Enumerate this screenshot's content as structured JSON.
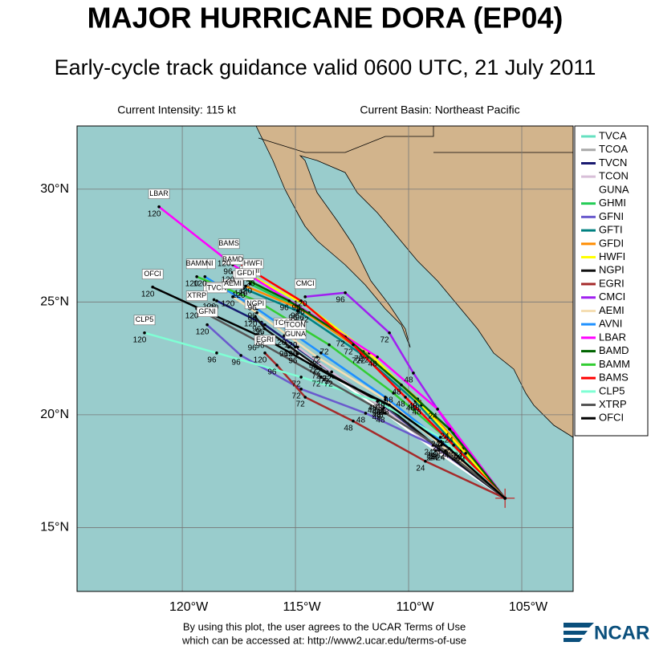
{
  "title": "MAJOR HURRICANE DORA (EP04)",
  "subtitle": "Early-cycle track guidance valid 0600 UTC, 21 July 2011",
  "intensity": "Current Intensity: 115 kt",
  "basin": "Current Basin: Northeast Pacific",
  "footer": [
    "By using this plot, the user agrees to the UCAR Terms of Use",
    "which can be accessed at: http://www2.ucar.edu/terms-of-use"
  ],
  "logo": "NCAR",
  "map": {
    "lonlim": [
      -124.65,
      -102.73
    ],
    "latlim": [
      12.17,
      32.8
    ],
    "lon_ticks": [
      {
        "value": -120,
        "label": "120°W"
      },
      {
        "value": -115,
        "label": "115°W"
      },
      {
        "value": -110,
        "label": "110°W"
      },
      {
        "value": -105,
        "label": "105°W"
      }
    ],
    "lat_ticks": [
      {
        "value": 15,
        "label": "15°N"
      },
      {
        "value": 20,
        "label": "20°N"
      },
      {
        "value": 25,
        "label": "25°N"
      },
      {
        "value": 30,
        "label": "30°N"
      }
    ],
    "start": {
      "lon": -105.74,
      "lat": 16.3
    },
    "hours": [
      24,
      48,
      72,
      96,
      120
    ],
    "models": [
      {
        "name": "TVCA",
        "color": "#66e0c0",
        "lon": [
          -108.8,
          -111.4,
          -114.0,
          -116.5,
          -118.6
        ],
        "lat": [
          18.5,
          20.5,
          22.3,
          24.1,
          25.1
        ]
      },
      {
        "name": "TCOA",
        "color": "#a9a9a9",
        "lon": [
          -108.7,
          -111.2,
          -113.6,
          -115.3,
          -115.5
        ],
        "lat": [
          18.4,
          20.3,
          21.9,
          23.0,
          23.5
        ]
      },
      {
        "name": "TVCN",
        "color": "#191970",
        "lon": [
          -108.72,
          -111.21,
          -113.87,
          -116.35,
          -118.48
        ],
        "lat": [
          18.47,
          20.43,
          22.21,
          23.99,
          25.05
        ]
      },
      {
        "name": "TCON",
        "color": "#d8bfd8",
        "lon": [
          -108.7,
          -111.1,
          -113.4,
          -114.9,
          -115.0
        ],
        "lat": [
          18.4,
          20.3,
          21.9,
          23.0,
          23.4
        ]
      },
      {
        "name": "GUNA",
        "color": "#ffffff",
        "lon": [
          -108.8,
          -111.2,
          -113.5,
          -114.9,
          -115.0
        ],
        "lat": [
          18.4,
          20.2,
          21.8,
          22.7,
          23.0
        ]
      },
      {
        "name": "GHMI",
        "color": "#22cc55",
        "lon": [
          -107.6,
          -109.5,
          -111.9,
          -114.6,
          -117.0
        ],
        "lat": [
          18.4,
          20.6,
          22.7,
          24.6,
          25.8
        ]
      },
      {
        "name": "GFNI",
        "color": "#6a5acd",
        "lon": [
          -108.9,
          -111.9,
          -114.75,
          -117.41,
          -118.9
        ],
        "lat": [
          18.65,
          20.07,
          21.14,
          22.63,
          23.99
        ]
      },
      {
        "name": "GFTI",
        "color": "#008080",
        "lon": [
          -107.7,
          -109.7,
          -112.1,
          -114.9,
          -117.3
        ],
        "lat": [
          18.4,
          20.6,
          22.7,
          24.6,
          25.6
        ]
      },
      {
        "name": "GFDI",
        "color": "#ff8c00",
        "lon": [
          -107.6,
          -109.6,
          -112.0,
          -114.8,
          -117.2
        ],
        "lat": [
          18.5,
          20.7,
          22.8,
          24.7,
          25.7
        ]
      },
      {
        "name": "HWFI",
        "color": "#ffff00",
        "lon": [
          -107.48,
          -109.43,
          -111.74,
          -114.57,
          -116.88
        ],
        "lat": [
          18.29,
          20.43,
          22.74,
          24.88,
          26.12
        ]
      },
      {
        "name": "NGPI",
        "color": "#111111",
        "lon": [
          -108.62,
          -111.03,
          -113.87,
          -116.35,
          -116.77
        ],
        "lat": [
          18.47,
          20.43,
          22.03,
          23.81,
          24.34
        ]
      },
      {
        "name": "EGRI",
        "color": "#a52a2a",
        "lon": [
          -109.26,
          -112.45,
          -114.57,
          -115.82,
          -116.35
        ],
        "lat": [
          17.94,
          19.72,
          20.78,
          22.2,
          22.74
        ]
      },
      {
        "name": "CMCI",
        "color": "#a020f0",
        "lon": [
          -108.01,
          -109.79,
          -110.85,
          -112.8,
          -114.57
        ],
        "lat": [
          19.18,
          21.85,
          23.63,
          25.41,
          25.23
        ]
      },
      {
        "name": "AEMI",
        "color": "#f5deb3",
        "lon": [
          -108.55,
          -111.03,
          -114.04,
          -116.7,
          -117.77
        ],
        "lat": [
          18.65,
          20.68,
          22.56,
          24.52,
          25.23
        ]
      },
      {
        "name": "AVNI",
        "color": "#1e90ff",
        "lon": [
          -108.55,
          -111.03,
          -113.87,
          -116.7,
          -119.0
        ],
        "lat": [
          18.83,
          20.78,
          22.74,
          24.7,
          26.12
        ]
      },
      {
        "name": "LBAR",
        "color": "#ff00ff",
        "lon": [
          -108.72,
          -111.38,
          -114.4,
          -117.77,
          -121.03
        ],
        "lat": [
          20.25,
          22.56,
          24.52,
          26.65,
          29.22
        ]
      },
      {
        "name": "BAMD",
        "color": "#006400",
        "lon": [
          -108.19,
          -110.32,
          -112.8,
          -115.28,
          -117.77
        ],
        "lat": [
          19.36,
          21.32,
          23.45,
          25.05,
          26.3
        ]
      },
      {
        "name": "BAMM",
        "color": "#32cd32",
        "lon": [
          -108.37,
          -110.67,
          -113.51,
          -116.7,
          -119.36
        ],
        "lat": [
          19.0,
          20.96,
          23.1,
          25.05,
          26.12
        ]
      },
      {
        "name": "BAMS",
        "color": "#ff0000",
        "lon": [
          -108.01,
          -110.14,
          -112.45,
          -114.75,
          -117.94
        ],
        "lat": [
          18.65,
          20.78,
          23.1,
          25.05,
          27.01
        ]
      },
      {
        "name": "CLP5",
        "color": "#7fffd4",
        "lon": [
          -108.6,
          -111.38,
          -114.75,
          -118.48,
          -121.67
        ],
        "lat": [
          19.0,
          20.6,
          21.67,
          22.74,
          23.63
        ]
      },
      {
        "name": "XTRP",
        "color": "#555555",
        "lon": [
          -108.37,
          -111.03,
          -113.87,
          -116.7,
          -119.36
        ],
        "lat": [
          18.4,
          20.07,
          21.67,
          23.27,
          24.7
        ]
      },
      {
        "name": "OFCI",
        "color": "#000000",
        "lon": [
          -108.2,
          -110.85,
          -113.33,
          -116.35,
          -121.31
        ],
        "lat": [
          18.5,
          20.43,
          21.67,
          23.38,
          25.66
        ]
      }
    ]
  }
}
